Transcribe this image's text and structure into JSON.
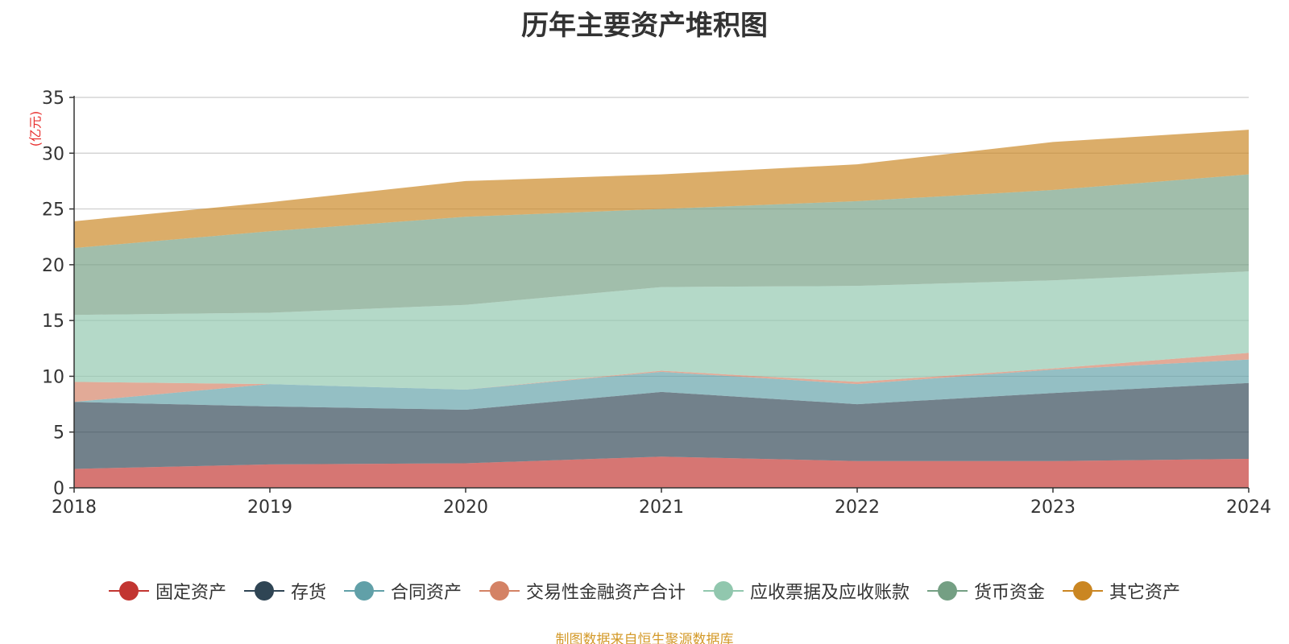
{
  "chart_data": {
    "type": "area",
    "stacked": true,
    "title": "历年主要资产堆积图",
    "ylabel": "(亿元)",
    "xlabel": "",
    "categories": [
      "2018",
      "2019",
      "2020",
      "2021",
      "2022",
      "2023",
      "2024"
    ],
    "ylim": [
      0,
      35
    ],
    "yticks": [
      0,
      5,
      10,
      15,
      20,
      25,
      30,
      35
    ],
    "grid": true,
    "legend_position": "bottom",
    "series": [
      {
        "name": "固定资产",
        "color": "#c23531",
        "values": [
          1.7,
          2.1,
          2.2,
          2.8,
          2.4,
          2.4,
          2.6
        ]
      },
      {
        "name": "存货",
        "color": "#2f4554",
        "values": [
          6.0,
          5.2,
          4.8,
          5.8,
          5.1,
          6.1,
          6.8
        ]
      },
      {
        "name": "合同资产",
        "color": "#61a0a8",
        "values": [
          0.0,
          2.0,
          1.8,
          1.8,
          1.8,
          2.1,
          2.1
        ]
      },
      {
        "name": "交易性金融资产合计",
        "color": "#d48265",
        "values": [
          1.8,
          0.0,
          0.0,
          0.1,
          0.2,
          0.1,
          0.6
        ]
      },
      {
        "name": "应收票据及应收账款",
        "color": "#91c7ae",
        "values": [
          6.0,
          6.4,
          7.6,
          7.5,
          8.6,
          7.9,
          7.3
        ]
      },
      {
        "name": "货币资金",
        "color": "#749f83",
        "values": [
          6.0,
          7.3,
          7.9,
          7.0,
          7.6,
          8.1,
          8.7
        ]
      },
      {
        "name": "其它资产",
        "color": "#ca8622",
        "values": [
          2.4,
          2.6,
          3.2,
          3.1,
          3.3,
          4.3,
          4.0
        ]
      }
    ],
    "source": "制图数据来自恒生聚源数据库"
  }
}
